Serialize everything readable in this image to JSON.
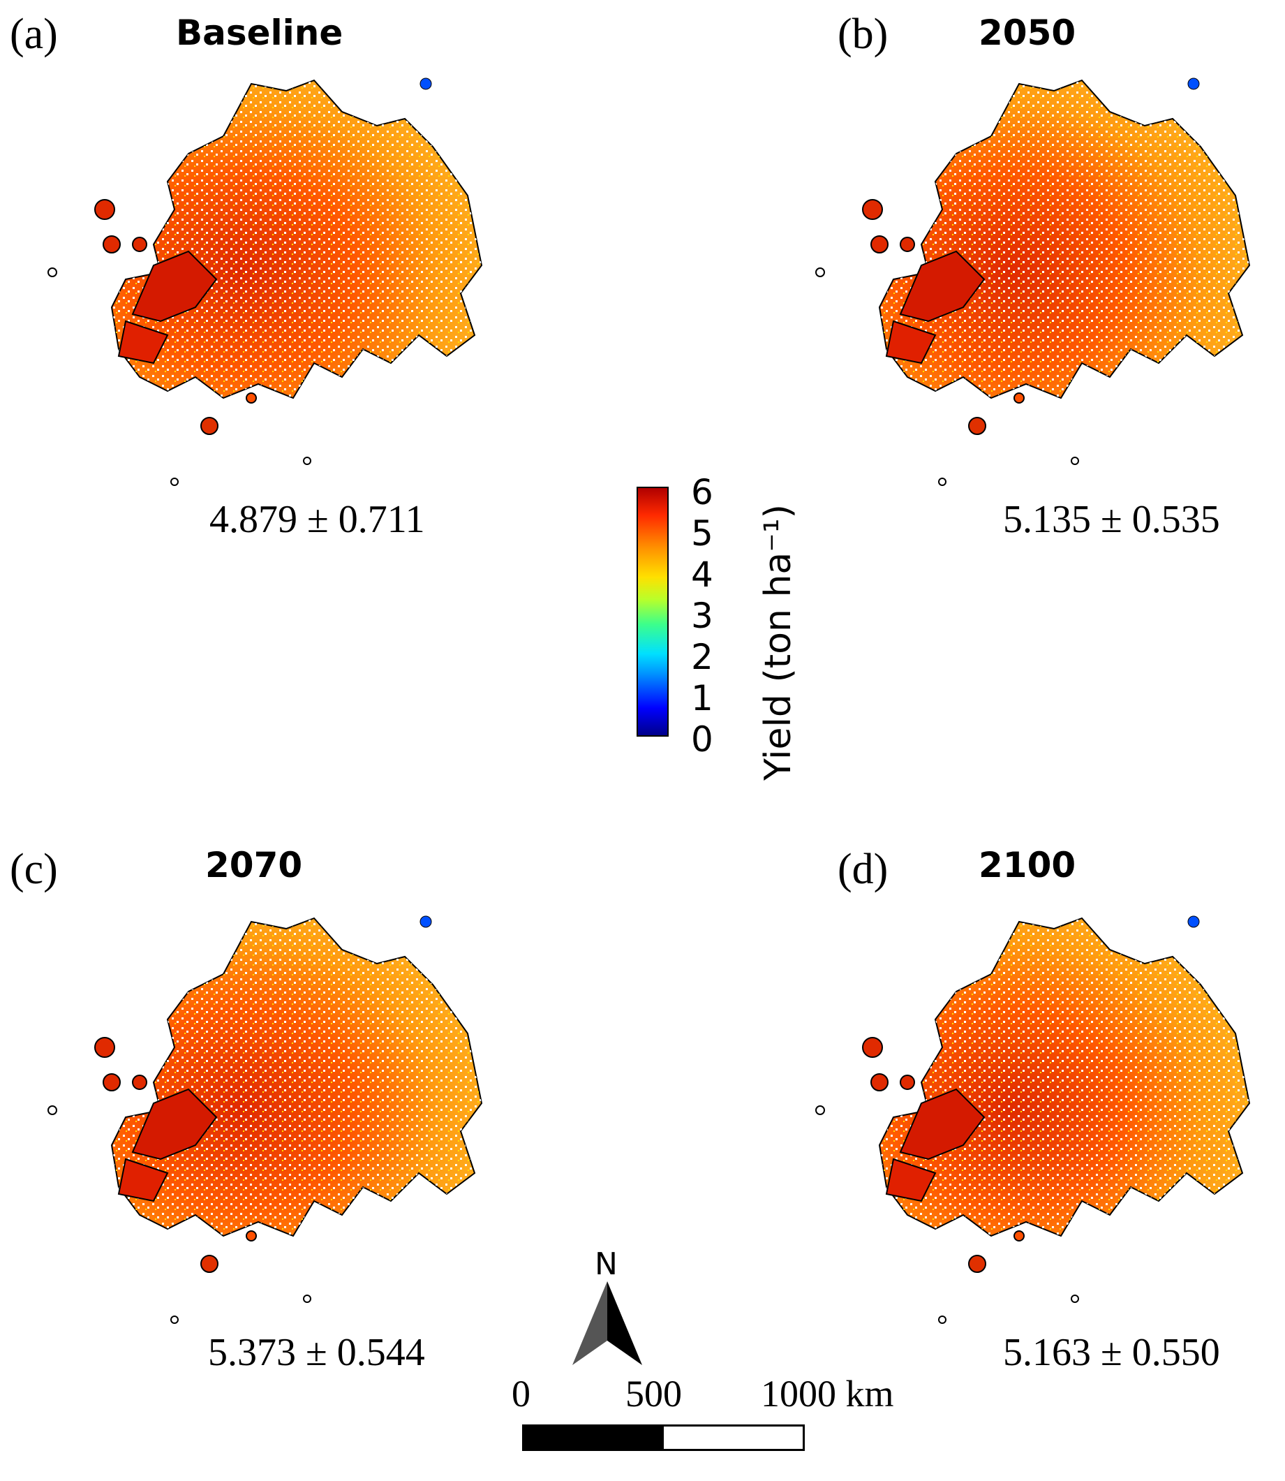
{
  "panels": [
    {
      "letter": "(a)",
      "title": "Baseline",
      "stat": "4.879 ± 0.711"
    },
    {
      "letter": "(b)",
      "title": "2050",
      "stat": "5.135 ± 0.535"
    },
    {
      "letter": "(c)",
      "title": "2070",
      "stat": "5.373 ± 0.544"
    },
    {
      "letter": "(d)",
      "title": "2100",
      "stat": "5.163 ± 0.550"
    }
  ],
  "colorbar": {
    "label": "Yield (ton ha⁻¹)",
    "ticks": [
      "6",
      "5",
      "4",
      "3",
      "2",
      "1",
      "0"
    ],
    "min": 0,
    "max": 6,
    "colors": [
      "#00008a",
      "#0000ff",
      "#0094ff",
      "#00e0ff",
      "#3dff8a",
      "#b9ff2a",
      "#ffe000",
      "#ff9000",
      "#ff2a00",
      "#b00000"
    ]
  },
  "north_arrow": {
    "letter": "N"
  },
  "scale_bar": {
    "labels": [
      "0",
      "500",
      "1000 km"
    ]
  }
}
